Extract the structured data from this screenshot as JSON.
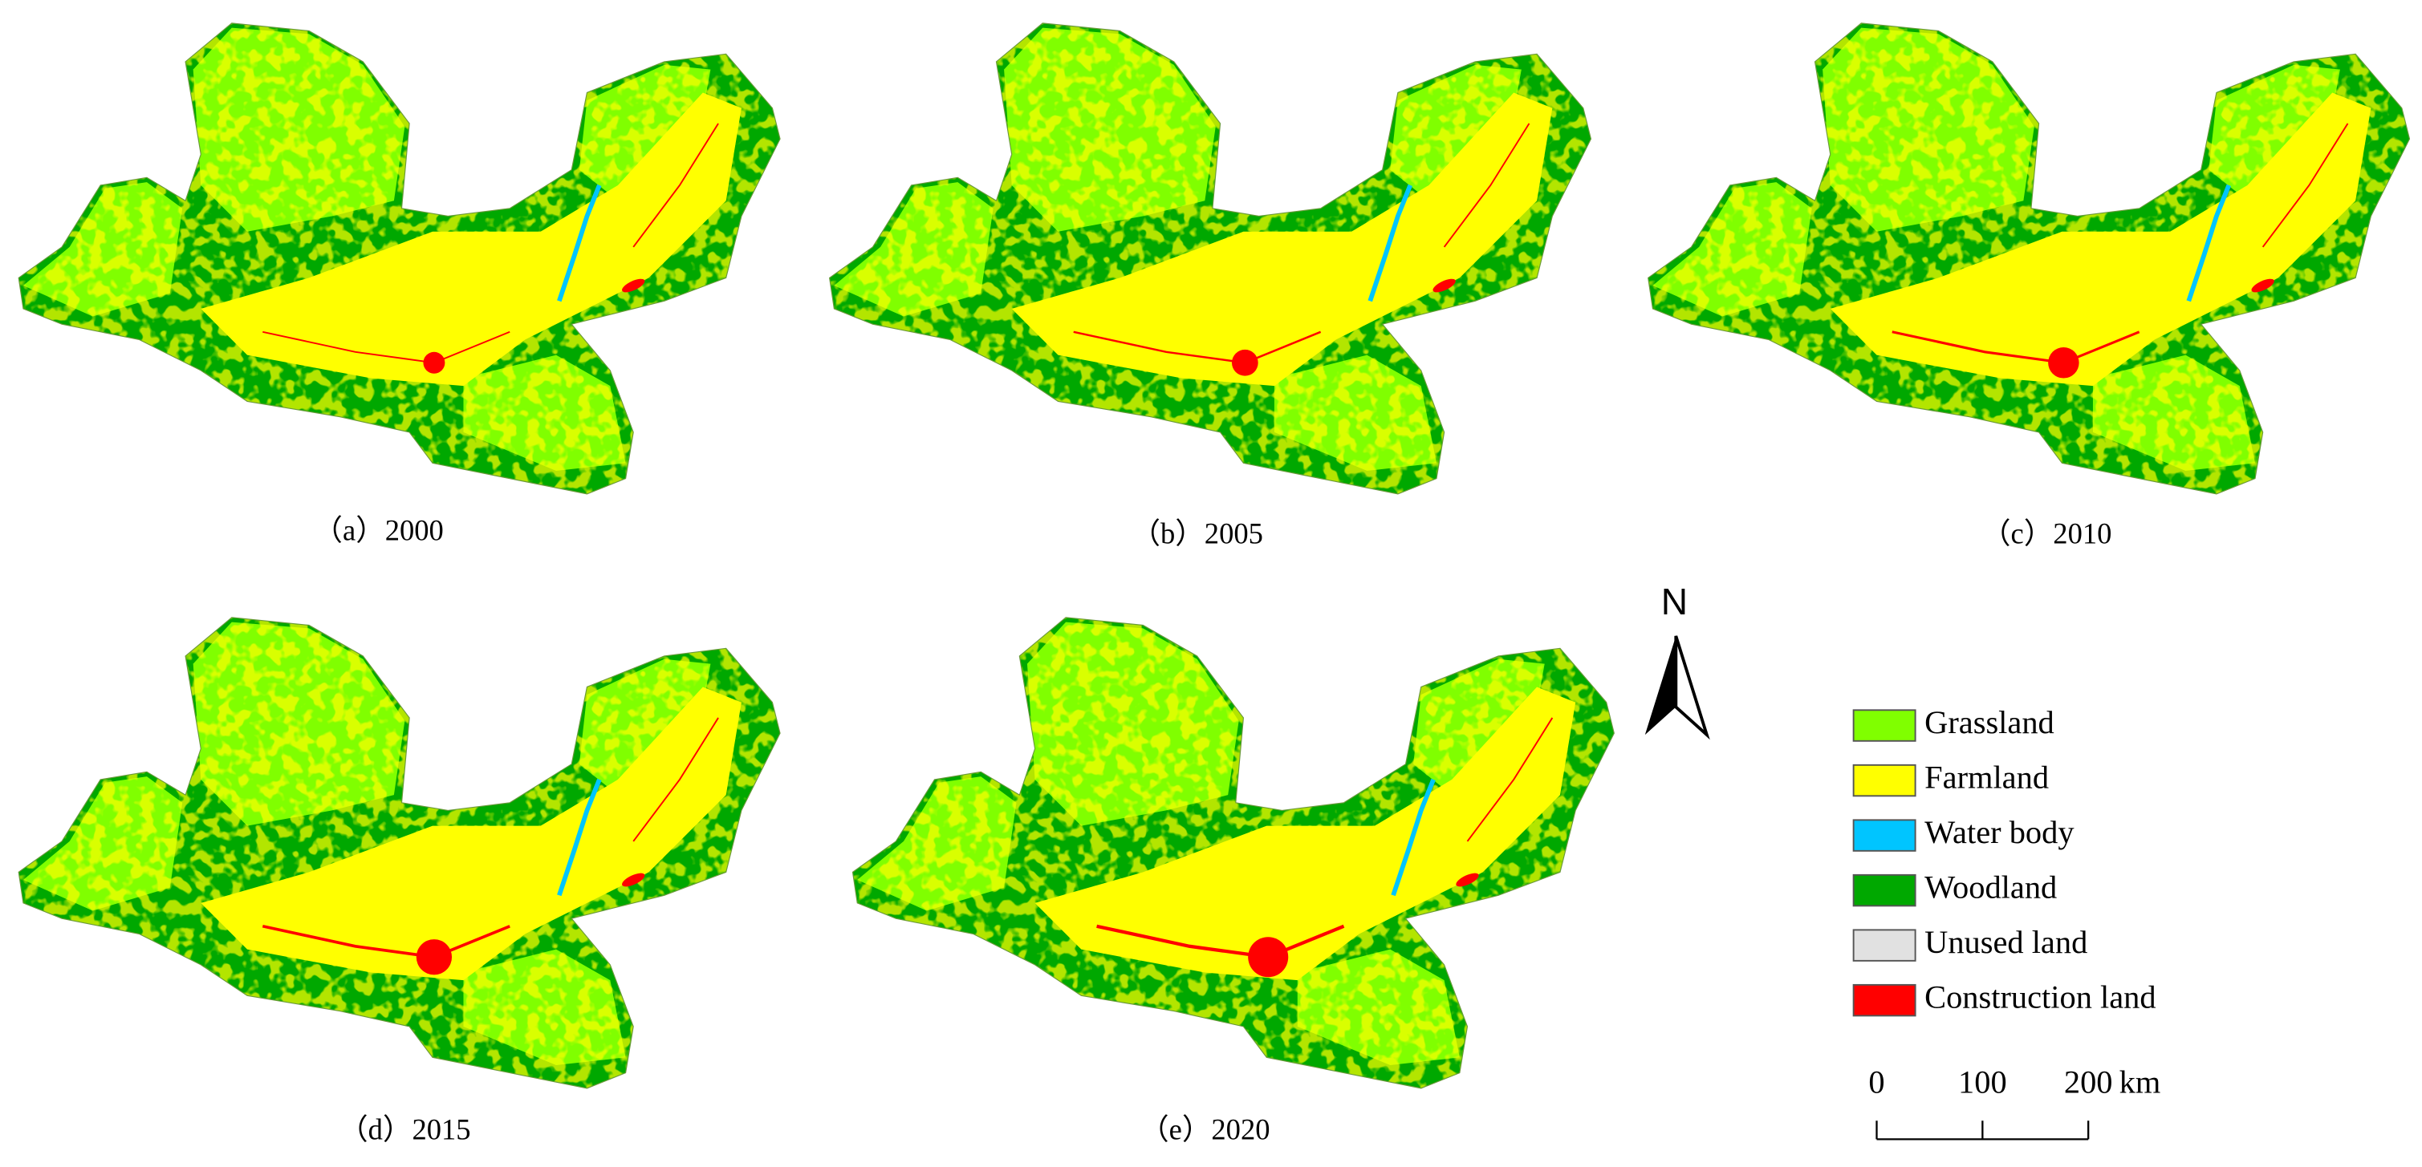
{
  "panels": [
    {
      "caption": "（a）2000"
    },
    {
      "caption": "（b）2005"
    },
    {
      "caption": "（c）2010"
    },
    {
      "caption": "（d）2015"
    },
    {
      "caption": "（e）2020"
    }
  ],
  "north_arrow": {
    "label": "N"
  },
  "legend": {
    "items": [
      {
        "name": "Grassland",
        "color": "#80ff00"
      },
      {
        "name": "Farmland",
        "color": "#ffff00"
      },
      {
        "name": "Water body",
        "color": "#00c5ff"
      },
      {
        "name": "Woodland",
        "color": "#00a800"
      },
      {
        "name": "Unused land",
        "color": "#e1e1e1"
      },
      {
        "name": "Construction land",
        "color": "#ff0000"
      }
    ]
  },
  "scale_bar": {
    "ticks": [
      0,
      100,
      200
    ],
    "unit": "km"
  }
}
